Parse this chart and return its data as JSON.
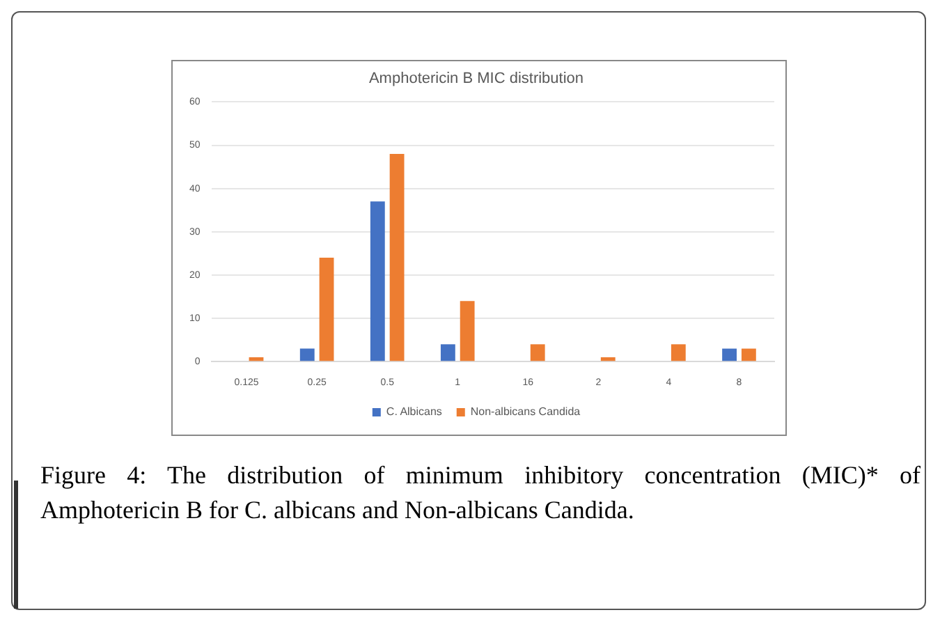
{
  "chart_data": {
    "type": "bar",
    "title": "Amphotericin B MIC distribution",
    "categories": [
      "0.125",
      "0.25",
      "0.5",
      "1",
      "16",
      "2",
      "4",
      "8"
    ],
    "series": [
      {
        "name": "C. Albicans",
        "color": "#4472c4",
        "values": [
          0,
          3,
          37,
          4,
          0,
          0,
          0,
          3
        ]
      },
      {
        "name": "Non-albicans Candida",
        "color": "#ed7d31",
        "values": [
          1,
          24,
          48,
          14,
          4,
          1,
          4,
          3
        ]
      }
    ],
    "ylim": [
      0,
      60
    ],
    "yticks": [
      0,
      10,
      20,
      30,
      40,
      50,
      60
    ],
    "grid": "y",
    "legend": "bottom",
    "annotations": [
      "Figure 4: The distribution of minimum inhibitory concentration (MIC)* of Amphotericin B for C. albicans and Non-albicans Candida."
    ]
  }
}
